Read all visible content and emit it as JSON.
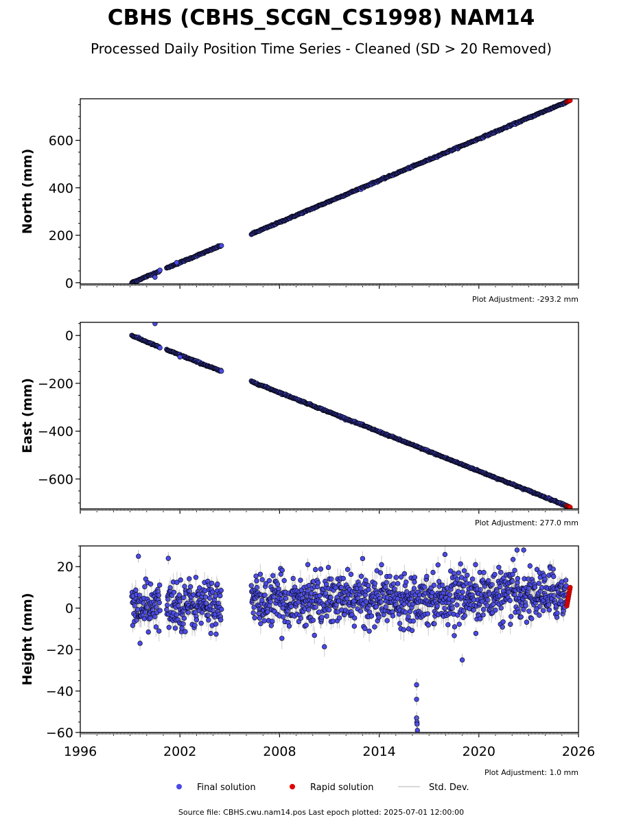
{
  "title": "CBHS (CBHS_SCGN_CS1998) NAM14",
  "subtitle": "Processed Daily Position Time Series - Cleaned (SD > 20 Removed)",
  "footer": {
    "source": "Source file: CBHS.cwu.nam14.pos  Last epoch plotted: 2025-07-01 12:00:00"
  },
  "legend": {
    "placement": "bottom-center",
    "items": [
      {
        "label": "Final solution",
        "color": "#4a4ae8",
        "kind": "marker"
      },
      {
        "label": "Rapid solution",
        "color": "#e00000",
        "kind": "marker"
      },
      {
        "label": "Std. Dev.",
        "color": "#cccccc",
        "kind": "line"
      }
    ]
  },
  "colors": {
    "final": "#4a4ae8",
    "final_edge": "#000000",
    "rapid": "#e00000",
    "stddev": "#888888"
  },
  "chart_data": [
    {
      "type": "scatter",
      "ylabel": "North (mm)",
      "adjustment": "Plot Adjustment: -293.2 mm",
      "xlim": [
        1996,
        2026
      ],
      "ylim": [
        -5,
        775
      ],
      "yticks": [
        0,
        200,
        400,
        600
      ],
      "ytick_labels": [
        "0",
        "200",
        "400",
        "600"
      ],
      "grid": false,
      "x_tick_labels_shown": false,
      "final_segments": [
        {
          "x": [
            1999.1,
            2000.8
          ],
          "y": [
            0,
            50
          ]
        },
        {
          "x": [
            2001.2,
            2004.5
          ],
          "y": [
            62,
            157
          ]
        },
        {
          "x": [
            2006.3,
            2025.3
          ],
          "y": [
            205,
            762
          ]
        }
      ],
      "final_outliers": [
        {
          "x": 2000.5,
          "y": 23
        },
        {
          "x": 2001.8,
          "y": 85
        }
      ],
      "rapid": {
        "x": [
          2025.3,
          2025.5
        ],
        "y": [
          762,
          768
        ]
      }
    },
    {
      "type": "scatter",
      "ylabel": "East (mm)",
      "adjustment": "Plot Adjustment: 277.0 mm",
      "xlim": [
        1996,
        2026
      ],
      "ylim": [
        -725,
        55
      ],
      "yticks": [
        0,
        -200,
        -400,
        -600
      ],
      "ytick_labels": [
        "0",
        "−200",
        "−400",
        "−600"
      ],
      "grid": false,
      "x_tick_labels_shown": false,
      "final_segments": [
        {
          "x": [
            1999.1,
            2000.8
          ],
          "y": [
            0,
            -50
          ]
        },
        {
          "x": [
            2001.2,
            2004.5
          ],
          "y": [
            -60,
            -150
          ]
        },
        {
          "x": [
            2006.3,
            2025.3
          ],
          "y": [
            -192,
            -712
          ]
        }
      ],
      "final_outliers": [
        {
          "x": 2000.5,
          "y": 50
        },
        {
          "x": 2002.0,
          "y": -90
        }
      ],
      "rapid": {
        "x": [
          2025.3,
          2025.5
        ],
        "y": [
          -712,
          -718
        ]
      }
    },
    {
      "type": "scatter",
      "ylabel": "Height (mm)",
      "xlabel": "",
      "adjustment": "Plot Adjustment: 1.0 mm",
      "xlim": [
        1996,
        2026
      ],
      "ylim": [
        -60,
        30
      ],
      "yticks": [
        20,
        0,
        -20,
        -40,
        -60
      ],
      "ytick_labels": [
        "20",
        "0",
        "−20",
        "−40",
        "−60"
      ],
      "xticks": [
        1996,
        2002,
        2008,
        2014,
        2020,
        2026
      ],
      "xtick_labels": [
        "1996",
        "2002",
        "2008",
        "2014",
        "2020",
        "2026"
      ],
      "grid": false,
      "x_tick_labels_shown": true,
      "final_segments": [
        {
          "x": [
            1999.1,
            2000.8
          ],
          "y": [
            0,
            0
          ]
        },
        {
          "x": [
            2001.2,
            2004.5
          ],
          "y": [
            2,
            2
          ]
        },
        {
          "x": [
            2006.3,
            2025.3
          ],
          "y": [
            3,
            7
          ]
        }
      ],
      "noise_sd": 6,
      "final_outliers": [
        {
          "x": 1999.5,
          "y": 25
        },
        {
          "x": 2001.3,
          "y": 24
        },
        {
          "x": 2009.7,
          "y": 21
        },
        {
          "x": 2019.0,
          "y": -25
        },
        {
          "x": 2019.8,
          "y": 21
        },
        {
          "x": 2022.3,
          "y": 28
        },
        {
          "x": 2022.7,
          "y": 28
        },
        {
          "x": 2016.25,
          "y": -37
        },
        {
          "x": 2016.25,
          "y": -44
        },
        {
          "x": 2016.25,
          "y": -53
        },
        {
          "x": 2016.27,
          "y": -55
        },
        {
          "x": 2016.28,
          "y": -56
        },
        {
          "x": 2016.3,
          "y": -59
        }
      ],
      "rapid": {
        "x": [
          2025.3,
          2025.5
        ],
        "y": [
          1,
          10
        ]
      }
    }
  ]
}
